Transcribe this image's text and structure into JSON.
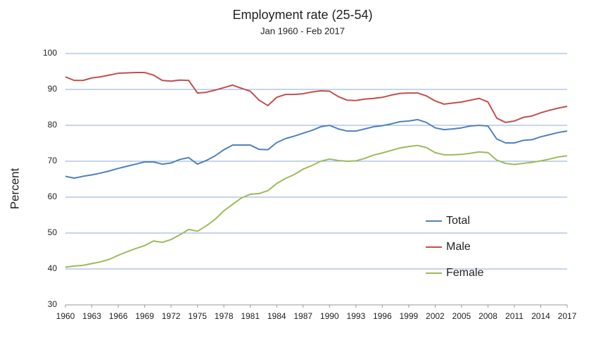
{
  "chart_data": {
    "type": "line",
    "title": "Employment rate (25-54)",
    "subtitle": "Jan 1960 - Feb 2017",
    "y_label": "Percent",
    "x": [
      1960,
      1961,
      1962,
      1963,
      1964,
      1965,
      1966,
      1967,
      1968,
      1969,
      1970,
      1971,
      1972,
      1973,
      1974,
      1975,
      1976,
      1977,
      1978,
      1979,
      1980,
      1981,
      1982,
      1983,
      1984,
      1985,
      1986,
      1987,
      1988,
      1989,
      1990,
      1991,
      1992,
      1993,
      1994,
      1995,
      1996,
      1997,
      1998,
      1999,
      2000,
      2001,
      2002,
      2003,
      2004,
      2005,
      2006,
      2007,
      2008,
      2009,
      2010,
      2011,
      2012,
      2013,
      2014,
      2015,
      2016,
      2017
    ],
    "series": [
      {
        "name": "Total",
        "color": "#4f81bd",
        "values": [
          65.8,
          65.3,
          65.8,
          66.2,
          66.7,
          67.3,
          68.0,
          68.6,
          69.2,
          69.8,
          69.8,
          69.2,
          69.5,
          70.5,
          71.0,
          69.2,
          70.2,
          71.5,
          73.2,
          74.5,
          74.5,
          74.5,
          73.3,
          73.2,
          75.2,
          76.3,
          77.0,
          77.8,
          78.6,
          79.6,
          80.0,
          79.0,
          78.4,
          78.4,
          79.0,
          79.6,
          79.9,
          80.4,
          81.0,
          81.2,
          81.6,
          80.8,
          79.3,
          78.8,
          79.0,
          79.3,
          79.8,
          80.0,
          79.8,
          76.2,
          75.1,
          75.1,
          75.8,
          76.0,
          76.8,
          77.4,
          78.0,
          78.4
        ]
      },
      {
        "name": "Male",
        "color": "#c0504d",
        "values": [
          93.5,
          92.5,
          92.5,
          93.2,
          93.5,
          94.0,
          94.5,
          94.6,
          94.7,
          94.7,
          94.0,
          92.5,
          92.3,
          92.6,
          92.5,
          89.0,
          89.2,
          89.8,
          90.5,
          91.2,
          90.3,
          89.5,
          87.0,
          85.5,
          87.8,
          88.6,
          88.6,
          88.8,
          89.3,
          89.6,
          89.5,
          88.0,
          87.0,
          86.9,
          87.3,
          87.5,
          87.8,
          88.4,
          88.9,
          89.0,
          89.0,
          88.2,
          86.8,
          85.9,
          86.2,
          86.5,
          87.0,
          87.5,
          86.5,
          82.0,
          80.8,
          81.2,
          82.2,
          82.6,
          83.5,
          84.2,
          84.8,
          85.3
        ]
      },
      {
        "name": "Female",
        "color": "#9bbb59",
        "values": [
          40.5,
          40.8,
          41.0,
          41.5,
          42.0,
          42.7,
          43.8,
          44.8,
          45.7,
          46.5,
          47.8,
          47.4,
          48.2,
          49.5,
          51.0,
          50.5,
          52.0,
          53.8,
          56.2,
          58.0,
          59.8,
          60.8,
          61.0,
          61.8,
          63.8,
          65.2,
          66.3,
          67.8,
          68.8,
          70.0,
          70.6,
          70.2,
          70.0,
          70.1,
          70.8,
          71.7,
          72.3,
          73.0,
          73.7,
          74.1,
          74.4,
          73.8,
          72.4,
          71.8,
          71.8,
          71.9,
          72.2,
          72.6,
          72.4,
          70.3,
          69.4,
          69.1,
          69.4,
          69.7,
          70.1,
          70.6,
          71.2,
          71.5
        ]
      }
    ],
    "xlim": [
      1960,
      2017
    ],
    "xticks": [
      1960,
      1963,
      1966,
      1969,
      1972,
      1975,
      1978,
      1981,
      1984,
      1987,
      1990,
      1993,
      1996,
      1999,
      2002,
      2005,
      2008,
      2011,
      2014,
      2017
    ],
    "ylim": [
      30,
      100
    ],
    "yticks": [
      30,
      40,
      50,
      60,
      70,
      80,
      90,
      100
    ],
    "grid": true,
    "legend": "right"
  }
}
